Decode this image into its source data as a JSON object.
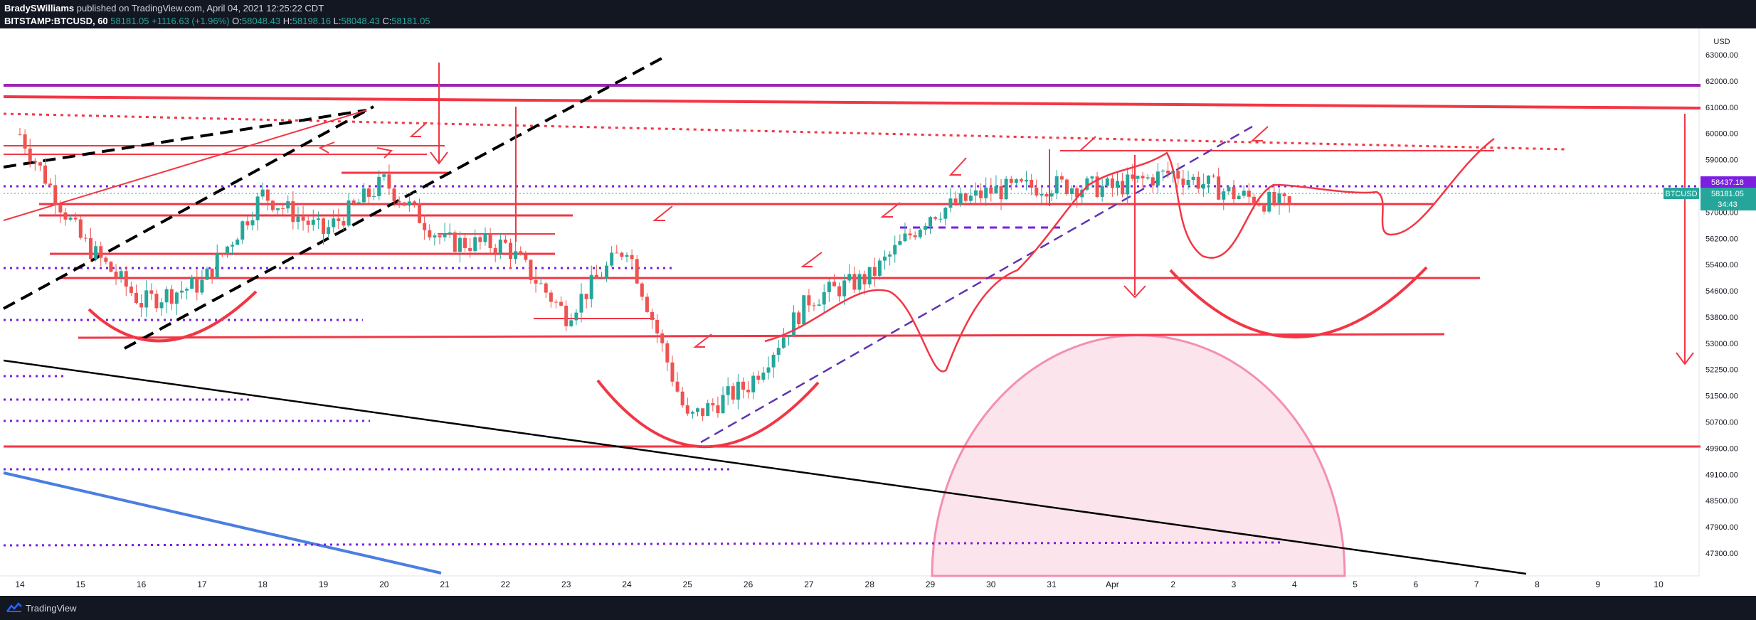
{
  "header": {
    "author": "BradySWilliams",
    "published_text": " published on TradingView.com, April 04, 2021 12:25:22 CDT",
    "symbol": "BITSTAMP:BTCUSD, 60",
    "last": "58181.05",
    "change": "+1116.63 (+1.96%)",
    "o_label": "O:",
    "o_value": "58048.43",
    "h_label": "H:",
    "h_value": "58198.16",
    "l_label": "L:",
    "l_value": "58048.43",
    "c_label": "C:",
    "c_value": "58181.05"
  },
  "footer": {
    "brand": "TradingView"
  },
  "colors": {
    "background": "#ffffff",
    "up": "#26a69a",
    "down": "#ef5350",
    "drawing_red": "#f23645",
    "purple": "#9c27b0",
    "dotted_purple": "#7b1fe0",
    "blue": "#4a7fe0",
    "pink_fill": "#f8bbd0"
  },
  "chart_data": {
    "type": "candlestick",
    "currency_label": "USD",
    "y_ticks": [
      "63000.00",
      "62000.00",
      "61000.00",
      "60000.00",
      "59000.00",
      "58200.00",
      "57000.00",
      "56200.00",
      "55400.00",
      "54600.00",
      "53800.00",
      "53000.00",
      "52250.00",
      "51500.00",
      "50700.00",
      "49900.00",
      "49100.00",
      "48500.00",
      "47900.00",
      "47300.00"
    ],
    "x_ticks": [
      "14",
      "15",
      "16",
      "17",
      "18",
      "19",
      "20",
      "21",
      "22",
      "23",
      "24",
      "25",
      "26",
      "27",
      "28",
      "29",
      "30",
      "31",
      "Apr",
      "2",
      "3",
      "4",
      "5",
      "6",
      "7",
      "8",
      "9",
      "10"
    ],
    "price_labels": [
      {
        "text": "58437.18",
        "color": "#7b1fe0"
      },
      {
        "text": "58181.05",
        "color": "#26a69a"
      },
      {
        "text": "34:43",
        "color": "#26a69a"
      }
    ],
    "symbol_tag": "BTCUSD",
    "approx_series": [
      {
        "date": "14",
        "close": 60500
      },
      {
        "date": "15",
        "close": 57200
      },
      {
        "date": "16",
        "close": 55200
      },
      {
        "date": "17",
        "close": 55800
      },
      {
        "date": "18",
        "close": 58600
      },
      {
        "date": "19",
        "close": 57400
      },
      {
        "date": "20",
        "close": 59000
      },
      {
        "date": "21",
        "close": 57100
      },
      {
        "date": "22",
        "close": 57000
      },
      {
        "date": "23",
        "close": 54800
      },
      {
        "date": "24",
        "close": 57000
      },
      {
        "date": "25",
        "close": 51500
      },
      {
        "date": "26",
        "close": 52600
      },
      {
        "date": "27",
        "close": 55300
      },
      {
        "date": "28",
        "close": 56000
      },
      {
        "date": "29",
        "close": 58000
      },
      {
        "date": "30",
        "close": 58700
      },
      {
        "date": "31",
        "close": 58900
      },
      {
        "date": "Apr",
        "close": 58800
      },
      {
        "date": "2",
        "close": 59300
      },
      {
        "date": "3",
        "close": 58600
      },
      {
        "date": "4",
        "close": 58181
      }
    ]
  }
}
